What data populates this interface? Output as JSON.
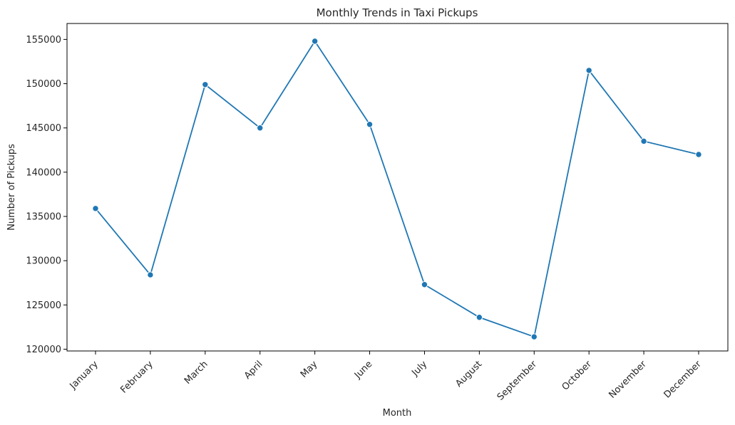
{
  "chart_data": {
    "type": "line",
    "title": "Monthly Trends in Taxi Pickups",
    "xlabel": "Month",
    "ylabel": "Number of Pickups",
    "categories": [
      "January",
      "February",
      "March",
      "April",
      "May",
      "June",
      "July",
      "August",
      "September",
      "October",
      "November",
      "December"
    ],
    "series": [
      {
        "values": [
          135900,
          128400,
          149900,
          145000,
          154800,
          145400,
          127300,
          123600,
          121400,
          151500,
          143500,
          142000
        ]
      }
    ],
    "ylim": [
      119800,
      156800
    ],
    "yticks": [
      120000,
      125000,
      130000,
      135000,
      140000,
      145000,
      150000,
      155000
    ],
    "ytick_labels": [
      "120000",
      "125000",
      "130000",
      "135000",
      "140000",
      "145000",
      "150000",
      "155000"
    ],
    "grid": false,
    "markers": true,
    "legend": "none",
    "colors": {
      "line": "#1f77b4",
      "axes": "#000000",
      "text": "#262626"
    }
  }
}
